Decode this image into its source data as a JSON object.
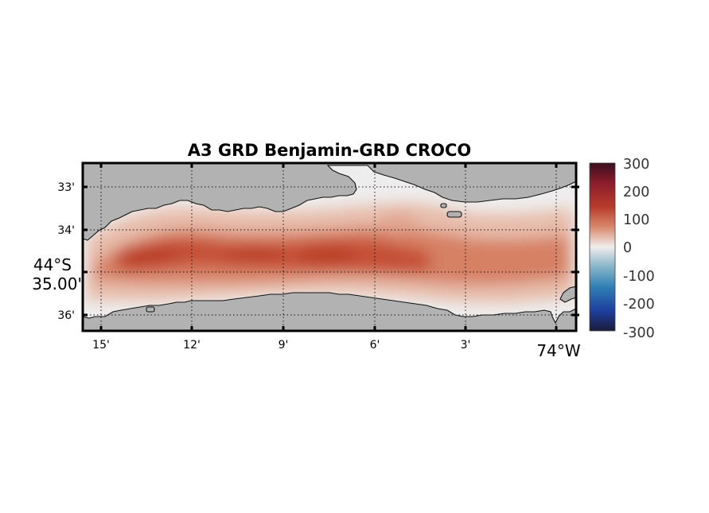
{
  "chart_data": {
    "type": "heatmap",
    "title": "A3 GRD Benjamin-GRD CROCO",
    "xlabel": "",
    "ylabel": "",
    "x_ticks": [
      "15'",
      "12'",
      "9'",
      "6'",
      "3'"
    ],
    "x_major_label": "74°W",
    "y_ticks": [
      "33'",
      "34'",
      "36'"
    ],
    "y_major_label_line1": "44°S",
    "y_major_label_line2": "35.00'",
    "colorbar": {
      "ticks": [
        "300",
        "200",
        "100",
        "0",
        "-100",
        "-200",
        "-300"
      ],
      "range": [
        -300,
        300
      ],
      "colormap": "balance"
    },
    "land_color": "#b2b2b2",
    "grid": "dotted",
    "field_description_bands": [
      {
        "x_frac_start": 0.0,
        "x_frac_end": 1.0
      }
    ]
  }
}
